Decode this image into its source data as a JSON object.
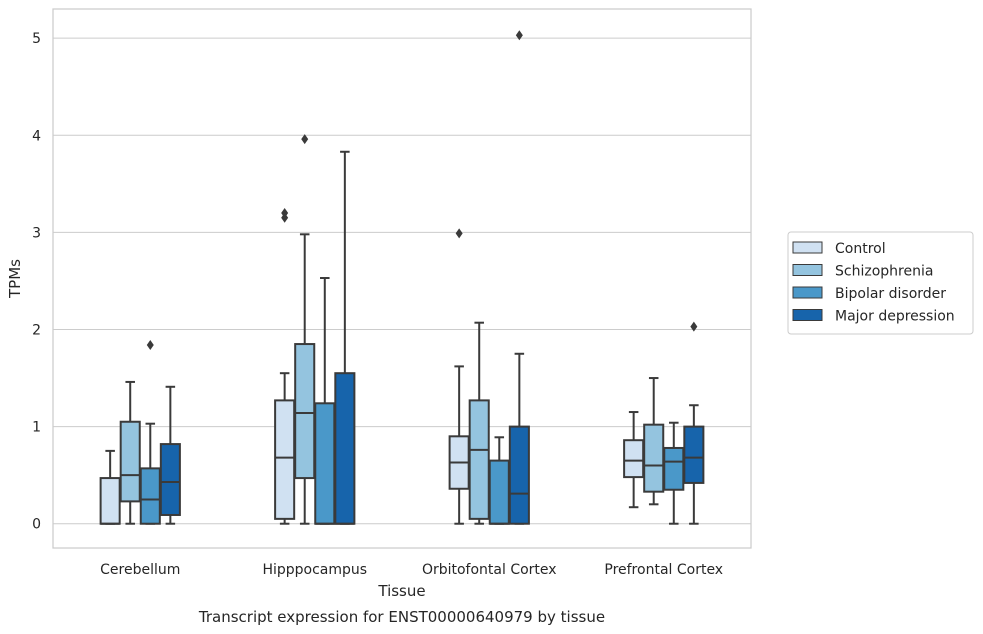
{
  "chart_data": {
    "type": "box",
    "caption": "Transcript expression for ENST00000640979 by tissue",
    "xlabel": "Tissue",
    "ylabel": "TPMs",
    "ylim": [
      -0.25,
      5.3
    ],
    "yticks": [
      0,
      1,
      2,
      3,
      4,
      5
    ],
    "grid": true,
    "legend_position": "right",
    "categories": [
      "Cerebellum",
      "Hipppocampus",
      "Orbitofontal Cortex",
      "Prefrontal Cortex"
    ],
    "series": [
      {
        "name": "Control",
        "color": "#d0e1f2",
        "boxes": [
          {
            "whislo": 0,
            "q1": 0,
            "med": 0,
            "q3": 0.47,
            "whishi": 0.75,
            "fliers": []
          },
          {
            "whislo": 0,
            "q1": 0.05,
            "med": 0.68,
            "q3": 1.27,
            "whishi": 1.55,
            "fliers": [
              3.15,
              3.2
            ]
          },
          {
            "whislo": 0,
            "q1": 0.36,
            "med": 0.63,
            "q3": 0.9,
            "whishi": 1.62,
            "fliers": [
              2.99
            ]
          },
          {
            "whislo": 0.17,
            "q1": 0.48,
            "med": 0.65,
            "q3": 0.86,
            "whishi": 1.15,
            "fliers": []
          }
        ]
      },
      {
        "name": "Schizophrenia",
        "color": "#94c4df",
        "boxes": [
          {
            "whislo": 0,
            "q1": 0.23,
            "med": 0.5,
            "q3": 1.05,
            "whishi": 1.46,
            "fliers": []
          },
          {
            "whislo": 0,
            "q1": 0.47,
            "med": 1.14,
            "q3": 1.85,
            "whishi": 2.98,
            "fliers": [
              3.96
            ]
          },
          {
            "whislo": 0,
            "q1": 0.05,
            "med": 0.76,
            "q3": 1.27,
            "whishi": 2.07,
            "fliers": []
          },
          {
            "whislo": 0.2,
            "q1": 0.33,
            "med": 0.6,
            "q3": 1.02,
            "whishi": 1.5,
            "fliers": []
          }
        ]
      },
      {
        "name": "Bipolar disorder",
        "color": "#4a98c9",
        "boxes": [
          {
            "whislo": 0,
            "q1": 0,
            "med": 0.25,
            "q3": 0.57,
            "whishi": 1.03,
            "fliers": [
              1.84
            ]
          },
          {
            "whislo": 0,
            "q1": 0,
            "med": 0,
            "q3": 1.24,
            "whishi": 2.53,
            "fliers": []
          },
          {
            "whislo": 0,
            "q1": 0,
            "med": 0,
            "q3": 0.65,
            "whishi": 0.89,
            "fliers": []
          },
          {
            "whislo": 0,
            "q1": 0.35,
            "med": 0.64,
            "q3": 0.78,
            "whishi": 1.04,
            "fliers": []
          }
        ]
      },
      {
        "name": "Major depression",
        "color": "#1764ab",
        "boxes": [
          {
            "whislo": 0,
            "q1": 0.09,
            "med": 0.43,
            "q3": 0.82,
            "whishi": 1.41,
            "fliers": []
          },
          {
            "whislo": 0,
            "q1": 0,
            "med": 0,
            "q3": 1.55,
            "whishi": 3.83,
            "fliers": []
          },
          {
            "whislo": 0,
            "q1": 0,
            "med": 0.31,
            "q3": 1.0,
            "whishi": 1.75,
            "fliers": [
              5.03
            ]
          },
          {
            "whislo": 0,
            "q1": 0.42,
            "med": 0.68,
            "q3": 1.0,
            "whishi": 1.22,
            "fliers": [
              2.03
            ]
          }
        ]
      }
    ]
  }
}
